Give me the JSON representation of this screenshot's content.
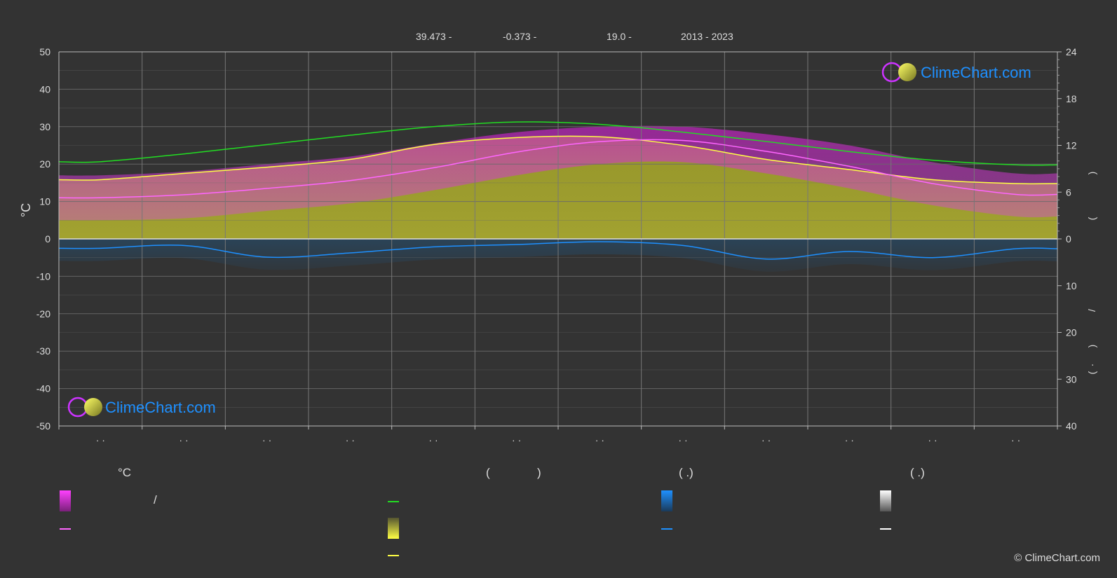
{
  "header": {
    "lat": "39.473 -",
    "lon": "-0.373 -",
    "elev": "19.0 -",
    "years": "2013 - 2023"
  },
  "left_axis_title": "°C",
  "right_axis_top_glyphs": [
    "(",
    ")"
  ],
  "right_axis_bottom_glyphs": [
    "/",
    "(",
    "·",
    ")"
  ],
  "month_labels": [
    "· ·",
    "· ·",
    "· ·",
    "· ·",
    "· ·",
    "· ·",
    "· ·",
    "· ·",
    "· ·",
    "· ·",
    "· ·",
    "· ·"
  ],
  "brand": {
    "logo_text": "ClimeChart.com",
    "copyright": "© ClimeChart.com",
    "accent": "#1e90ff"
  },
  "legend": {
    "temp_header": "°C",
    "sun_header_open": "(",
    "sun_header_close": ")",
    "rain_header": "( .)",
    "snow_header": "( .)",
    "temp_range_sep": "/"
  },
  "colors": {
    "max_temp_band": "#d020d0",
    "mean_temp_line": "#ff66ff",
    "daylight_line": "#22dd22",
    "sunshine_band": "#b5b533",
    "sunshine_line": "#ffff44",
    "rain_band": "#1e5a8a",
    "rain_line": "#1e90ff",
    "snow_line": "#ffffff"
  },
  "chart_data": {
    "type": "line",
    "x": [
      1,
      2,
      3,
      4,
      5,
      6,
      7,
      8,
      9,
      10,
      11,
      12
    ],
    "left_axis": {
      "label": "°C",
      "ylim": [
        -50,
        50
      ],
      "ticks": [
        50,
        40,
        30,
        20,
        10,
        0,
        -10,
        -20,
        -30,
        -40,
        -50
      ]
    },
    "right_axis_top": {
      "ylim": [
        0,
        24
      ],
      "ticks": [
        24,
        18,
        12,
        6,
        0
      ]
    },
    "right_axis_bottom": {
      "ylim": [
        0,
        40
      ],
      "ticks": [
        0,
        10,
        20,
        30,
        40
      ]
    },
    "series": [
      {
        "key": "daylight",
        "axis": "right_top",
        "values": [
          9.9,
          10.9,
          12.1,
          13.3,
          14.4,
          15.0,
          14.7,
          13.7,
          12.5,
          11.2,
          10.1,
          9.5
        ]
      },
      {
        "key": "sunshine",
        "axis": "right_top",
        "values": [
          7.6,
          8.4,
          9.2,
          10.2,
          12.1,
          13.0,
          13.1,
          12.0,
          10.2,
          8.9,
          7.6,
          7.1
        ]
      },
      {
        "key": "max_temp",
        "axis": "left",
        "values": [
          17.0,
          18.0,
          20.0,
          22.0,
          25.5,
          28.5,
          30.0,
          30.0,
          28.0,
          25.0,
          20.5,
          17.5
        ]
      },
      {
        "key": "mean_temp",
        "axis": "left",
        "values": [
          11.0,
          11.8,
          13.5,
          15.6,
          19.0,
          23.2,
          26.0,
          26.3,
          23.4,
          19.4,
          14.8,
          11.9
        ]
      },
      {
        "key": "min_temp",
        "axis": "left",
        "values": [
          5.0,
          5.5,
          7.5,
          9.5,
          13.0,
          17.0,
          20.0,
          20.5,
          17.5,
          13.5,
          9.0,
          6.0
        ]
      },
      {
        "key": "rain",
        "axis": "right_bottom",
        "values": [
          2.0,
          1.4,
          3.9,
          3.0,
          1.7,
          1.2,
          0.6,
          1.4,
          4.3,
          2.7,
          4.0,
          2.1
        ]
      }
    ]
  }
}
